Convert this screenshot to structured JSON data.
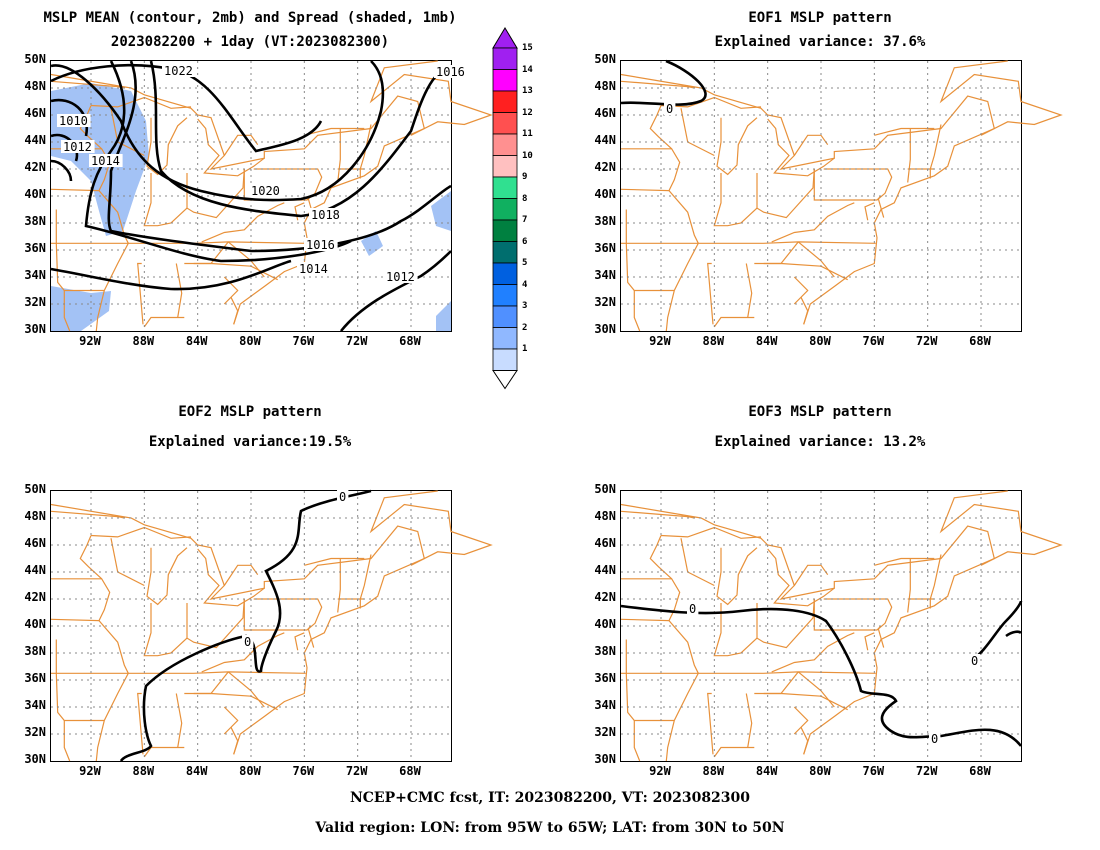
{
  "titles": {
    "mean_line1": "MSLP MEAN (contour, 2mb) and Spread (shaded, 1mb)",
    "mean_line2": "2023082200 + 1day (VT:2023082300)",
    "eof1_line1": "EOF1 MSLP pattern",
    "eof1_line2": "Explained variance: 37.6%",
    "eof2_line1": "EOF2 MSLP pattern",
    "eof2_line2": "Explained variance:19.5%",
    "eof3_line1": "EOF3 MSLP pattern",
    "eof3_line2": "Explained variance: 13.2%"
  },
  "lat_labels": [
    "50N",
    "48N",
    "46N",
    "44N",
    "42N",
    "40N",
    "38N",
    "36N",
    "34N",
    "32N",
    "30N"
  ],
  "lon_labels": [
    "92W",
    "88W",
    "84W",
    "80W",
    "76W",
    "72W",
    "68W"
  ],
  "colorbar": {
    "labels": [
      "15",
      "14",
      "13",
      "12",
      "11",
      "10",
      "9",
      "8",
      "7",
      "6",
      "5",
      "4",
      "3",
      "2",
      "1"
    ],
    "colors": [
      "#a020f0",
      "#ff00ff",
      "#ff2020",
      "#ff5050",
      "#ff9090",
      "#ffc0c0",
      "#30e090",
      "#10b060",
      "#008040",
      "#006e6e",
      "#0060e0",
      "#2080ff",
      "#5090ff",
      "#90b8ff",
      "#c8dcff"
    ]
  },
  "contour_labels": {
    "mean": [
      "1022",
      "1020",
      "1018",
      "1016",
      "1014",
      "1012",
      "1010",
      "1012",
      "1014",
      "1016"
    ],
    "eof1": [
      "0"
    ],
    "eof2": [
      "0",
      "0"
    ],
    "eof3": [
      "0",
      "0",
      "0"
    ]
  },
  "colors": {
    "map": "#e8913a",
    "grid": "#888888",
    "contour": "#000000",
    "spread": "#a3c2f5"
  },
  "footer": {
    "line1": "NCEP+CMC fcst, IT: 2023082200, VT: 2023082300",
    "line2": "Valid region: LON: from 95W to 65W; LAT: from 30N to 50N"
  }
}
